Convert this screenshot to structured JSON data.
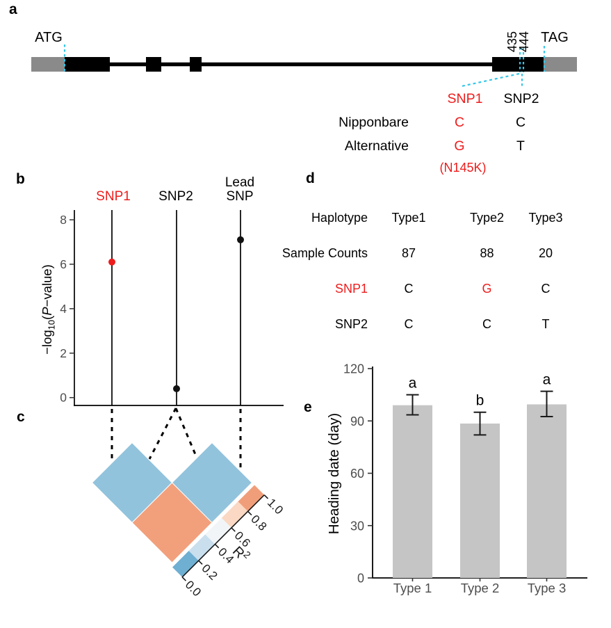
{
  "panels": {
    "a": "a",
    "b": "b",
    "c": "c",
    "d": "d",
    "e": "e"
  },
  "colors": {
    "red": "#ee1c1c",
    "cyan_dash": "#35c6e8",
    "utr_gray": "#8a8a8a",
    "exon_black": "#000000",
    "axis_text": "#4d4d4d",
    "ld_blue": "#92c3dc",
    "ld_orange": "#f2a07c",
    "bar_fill": "#c5c5c5"
  },
  "panel_a": {
    "label_atg": "ATG",
    "label_tag": "TAG",
    "pos_435": "435",
    "pos_444": "444",
    "snp1": "SNP1",
    "snp2": "SNP2",
    "row1_label": "Nipponbare",
    "row1_snp1": "C",
    "row1_snp2": "C",
    "row2_label": "Alternative",
    "row2_snp1": "G",
    "row2_snp2": "T",
    "effect_label": "(N145K)"
  },
  "panel_b": {
    "labels": {
      "snp1": "SNP1",
      "snp2": "SNP2",
      "lead_line1": "Lead",
      "lead_line2": "SNP",
      "ylabel_pre": "−log",
      "ylabel_sub": "10",
      "ylabel_mid": "(",
      "ylabel_p": "P",
      "ylabel_post": "−value)"
    }
  },
  "panel_d": {
    "header": [
      "Haplotype",
      "Type1",
      "Type2",
      "Type3"
    ],
    "rows": [
      {
        "label": "Sample Counts",
        "values": [
          "87",
          "88",
          "20"
        ]
      },
      {
        "label": "SNP1",
        "values": [
          "C",
          "G",
          "C"
        ]
      },
      {
        "label": "SNP2",
        "values": [
          "C",
          "C",
          "T"
        ]
      }
    ]
  },
  "chart_data": [
    {
      "id": "b",
      "type": "scatter",
      "title": "",
      "categories": [
        "SNP1",
        "SNP2",
        "Lead SNP"
      ],
      "values": [
        6.1,
        0.4,
        7.1
      ],
      "point_colors": [
        "#ee1c1c",
        "#111111",
        "#111111"
      ],
      "category_label_colors": [
        "#ee1c1c",
        "#111111",
        "#111111"
      ],
      "ylabel": "-log10(P-value)",
      "ylim": [
        0,
        8.4
      ],
      "yticks": [
        0,
        2,
        4,
        6,
        8
      ],
      "grid": "off"
    },
    {
      "id": "c",
      "type": "heatmap",
      "cells": [
        {
          "pair": "SNP1 x SNP2",
          "r2_estimate": 0.1,
          "color": "#92c3dc"
        },
        {
          "pair": "SNP2 x Lead SNP",
          "r2_estimate": 0.1,
          "color": "#92c3dc"
        },
        {
          "pair": "SNP1 x Lead SNP",
          "r2_estimate": 0.9,
          "color": "#f2a07c"
        }
      ],
      "legend": {
        "label": "R2",
        "label_main": "R",
        "label_sup": "2",
        "ticks": [
          "0.0",
          "0.2",
          "0.4",
          "0.6",
          "0.8",
          "1.0"
        ],
        "scale_colors": [
          "#6fafd2",
          "#c9dfee",
          "#f1f5f8",
          "#fad8c3",
          "#f09e79"
        ]
      }
    },
    {
      "id": "e",
      "type": "bar",
      "categories": [
        "Type 1",
        "Type 2",
        "Type 3"
      ],
      "values": [
        99,
        88.5,
        99.5
      ],
      "error_low": [
        93.5,
        82,
        92.5
      ],
      "error_high": [
        105,
        95,
        107
      ],
      "sig_letters": [
        "a",
        "b",
        "a"
      ],
      "ylabel": "Heading date (day)",
      "ylim": [
        0,
        120
      ],
      "yticks": [
        0,
        30,
        60,
        90,
        120
      ],
      "bar_color": "#c5c5c5",
      "grid": "off"
    }
  ]
}
